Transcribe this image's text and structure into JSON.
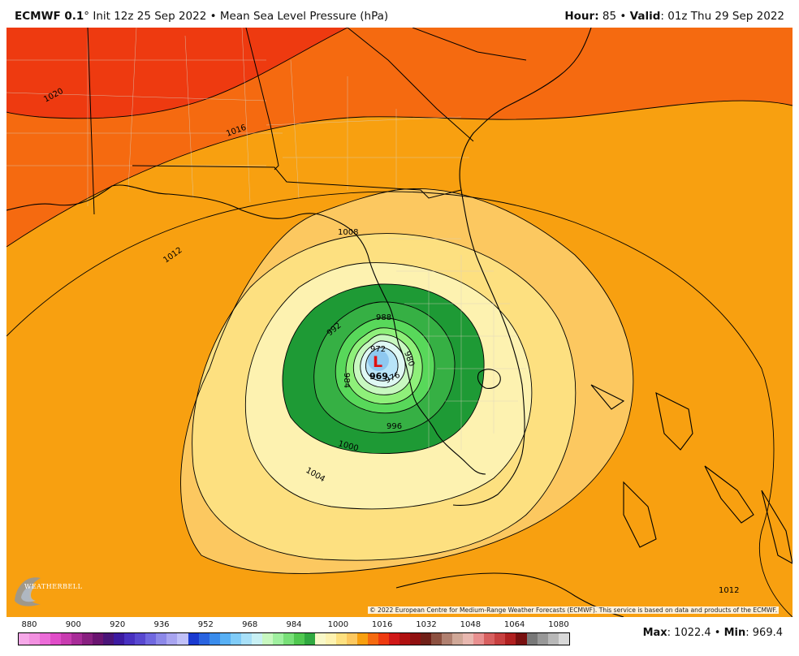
{
  "header": {
    "model": "ECMWF 0.1",
    "degree": "°",
    "init": " Init 12z 25 Sep 2022",
    "separator": " • ",
    "field": "Mean Sea Level Pressure (hPa)",
    "hour_label": "Hour:",
    "hour_value": " 85",
    "valid_label": "Valid",
    "valid_value": ": 01z Thu 29 Sep 2022"
  },
  "map": {
    "low_symbol": "L",
    "low_value": "969",
    "contour_labels": [
      "1020",
      "1016",
      "1012",
      "1008",
      "1004",
      "1000",
      "996",
      "992",
      "988",
      "984",
      "980",
      "976",
      "972",
      "1012"
    ],
    "colors": {
      "p1020": "#ee3a10",
      "p1016": "#f56a10",
      "p1012": "#f8a010",
      "p1008": "#fcc860",
      "p1004": "#fde080",
      "p1000": "#fdf2b0",
      "p996": "#1e9a35",
      "p992": "#36b044",
      "p988": "#58d85a",
      "p984": "#8ff07a",
      "p980": "#c8f8c0",
      "p976": "#dff8f4",
      "p972": "#b8e4f8",
      "p969": "#8ec8f0",
      "low_symbol": "#e01010",
      "coast": "#000000",
      "county": "#c8c8c8"
    }
  },
  "copyright": "© 2022 European Centre for Medium-Range Weather Forecasts (ECMWF). This service is based on data and products of the ECMWF.",
  "logo_text": "WEATHERBELL",
  "colorbar": {
    "labels": [
      "880",
      "900",
      "920",
      "936",
      "952",
      "968",
      "984",
      "1000",
      "1016",
      "1032",
      "1048",
      "1064",
      "1080"
    ],
    "colors": [
      "#f6a8e8",
      "#f290e0",
      "#ec6cd8",
      "#e04cc8",
      "#c83cb0",
      "#a82c98",
      "#882080",
      "#6a1470",
      "#4a1478",
      "#3c1aa0",
      "#4830c0",
      "#5848d0",
      "#7068e0",
      "#8c88e8",
      "#a8a4f0",
      "#c0c0f8",
      "#1a3ad0",
      "#2a64e0",
      "#3a8cec",
      "#58b0f4",
      "#80ccf8",
      "#a8e0f8",
      "#c8f0f4",
      "#c8f8c0",
      "#a0f0a0",
      "#78e078",
      "#50c850",
      "#30a840",
      "#f8f8c8",
      "#fdf2b0",
      "#fde080",
      "#fcc860",
      "#f8a010",
      "#f56a10",
      "#ee3a10",
      "#d01818",
      "#b01010",
      "#901010",
      "#702018",
      "#8c5040",
      "#b08070",
      "#d0a898",
      "#e8b8b0",
      "#e89090",
      "#d86060",
      "#c84040",
      "#b02020",
      "#781010",
      "#787878",
      "#989898",
      "#b8b8b8",
      "#d8d8d8"
    ]
  },
  "stats": {
    "max_label": "Max",
    "max_value": ": 1022.4",
    "sep": " • ",
    "min_label": "Min",
    "min_value": ": 969.4"
  }
}
